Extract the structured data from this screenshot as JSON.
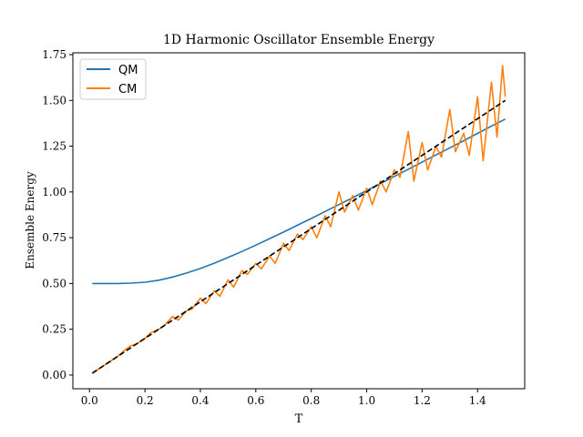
{
  "chart_data": {
    "type": "line",
    "title": "1D Harmonic Oscillator Ensemble Energy",
    "xlabel": "T",
    "ylabel": "Ensemble Energy",
    "xlim": [
      -0.06,
      1.57
    ],
    "ylim": [
      -0.075,
      1.76
    ],
    "xticks": [
      0.0,
      0.2,
      0.4,
      0.6,
      0.8,
      1.0,
      1.2,
      1.4
    ],
    "xtick_labels": [
      "0.0",
      "0.2",
      "0.4",
      "0.6",
      "0.8",
      "1.0",
      "1.2",
      "1.4"
    ],
    "yticks": [
      0.0,
      0.25,
      0.5,
      0.75,
      1.0,
      1.25,
      1.5,
      1.75
    ],
    "ytick_labels": [
      "0.00",
      "0.25",
      "0.50",
      "0.75",
      "1.00",
      "1.25",
      "1.50",
      "1.75"
    ],
    "grid": false,
    "legend_position": "top-left",
    "series": [
      {
        "name": "QM",
        "color": "#1f77b4",
        "style": "solid",
        "x": [
          0.01,
          0.05,
          0.1,
          0.15,
          0.2,
          0.25,
          0.3,
          0.35,
          0.4,
          0.45,
          0.5,
          0.55,
          0.6,
          0.65,
          0.7,
          0.75,
          0.8,
          0.85,
          0.9,
          0.95,
          1.0,
          1.05,
          1.1,
          1.15,
          1.2,
          1.25,
          1.3,
          1.35,
          1.4,
          1.45,
          1.5
        ],
        "values": [
          0.5,
          0.5,
          0.5,
          0.502,
          0.507,
          0.518,
          0.535,
          0.557,
          0.582,
          0.611,
          0.642,
          0.675,
          0.709,
          0.745,
          0.781,
          0.818,
          0.855,
          0.893,
          0.931,
          0.969,
          1.008,
          1.046,
          1.085,
          1.124,
          1.163,
          1.202,
          1.241,
          1.28,
          1.32,
          1.359,
          1.398
        ]
      },
      {
        "name": "CM",
        "color": "#ff7f0e",
        "style": "solid",
        "x": [
          0.01,
          0.05,
          0.1,
          0.13,
          0.15,
          0.17,
          0.2,
          0.22,
          0.25,
          0.27,
          0.3,
          0.32,
          0.35,
          0.37,
          0.4,
          0.42,
          0.45,
          0.47,
          0.5,
          0.52,
          0.55,
          0.57,
          0.6,
          0.62,
          0.65,
          0.67,
          0.7,
          0.72,
          0.75,
          0.77,
          0.8,
          0.82,
          0.85,
          0.87,
          0.9,
          0.92,
          0.95,
          0.97,
          1.0,
          1.02,
          1.05,
          1.07,
          1.1,
          1.12,
          1.15,
          1.17,
          1.2,
          1.22,
          1.25,
          1.27,
          1.3,
          1.32,
          1.35,
          1.37,
          1.4,
          1.42,
          1.45,
          1.47,
          1.49,
          1.5
        ],
        "values": [
          0.01,
          0.05,
          0.1,
          0.14,
          0.16,
          0.17,
          0.2,
          0.23,
          0.25,
          0.27,
          0.32,
          0.3,
          0.35,
          0.36,
          0.42,
          0.39,
          0.46,
          0.43,
          0.52,
          0.48,
          0.57,
          0.55,
          0.61,
          0.58,
          0.65,
          0.61,
          0.72,
          0.68,
          0.77,
          0.74,
          0.81,
          0.75,
          0.87,
          0.81,
          1.0,
          0.89,
          0.98,
          0.9,
          1.02,
          0.93,
          1.06,
          1.0,
          1.12,
          1.08,
          1.33,
          1.06,
          1.27,
          1.12,
          1.25,
          1.19,
          1.45,
          1.22,
          1.32,
          1.2,
          1.52,
          1.17,
          1.6,
          1.3,
          1.69,
          1.52
        ]
      },
      {
        "name": "",
        "color": "#000000",
        "style": "dashed",
        "x": [
          0.01,
          1.5
        ],
        "values": [
          0.01,
          1.5
        ]
      }
    ]
  }
}
